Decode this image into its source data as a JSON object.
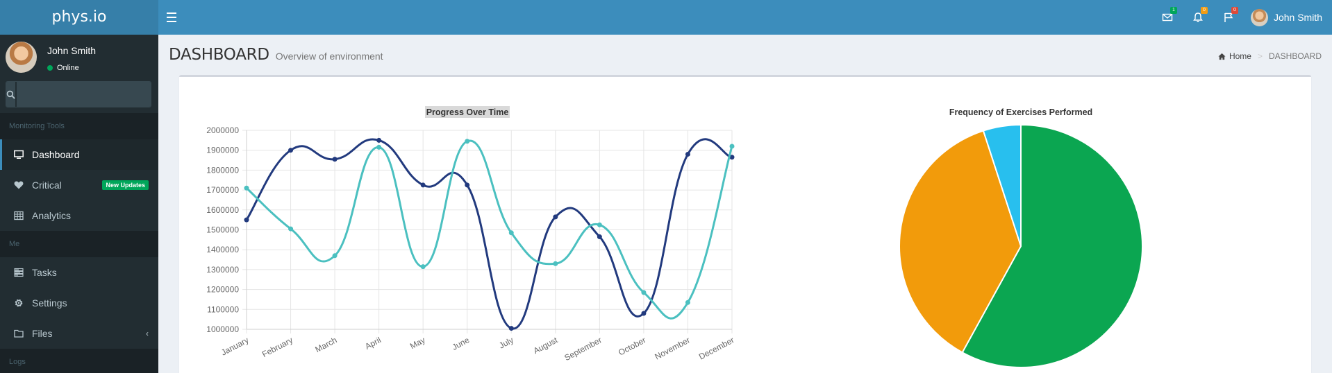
{
  "app": {
    "logo": "phys.io"
  },
  "header": {
    "notifications": [
      {
        "icon": "envelope-icon",
        "count": "1",
        "color": "#00a65a"
      },
      {
        "icon": "bell-icon",
        "count": "0",
        "color": "#f39c12"
      },
      {
        "icon": "flag-icon",
        "count": "0",
        "color": "#dd4b39"
      }
    ],
    "user_name": "John Smith"
  },
  "sidebar": {
    "user": {
      "name": "John Smith",
      "status": "Online"
    },
    "search": {
      "value": "",
      "placeholder": ""
    },
    "sections": [
      {
        "header": "Monitoring Tools",
        "items": [
          {
            "label": "Dashboard",
            "icon": "desktop-icon",
            "active": true
          },
          {
            "label": "Critical",
            "icon": "heart-icon",
            "badge": "New Updates"
          },
          {
            "label": "Analytics",
            "icon": "table-icon"
          }
        ]
      },
      {
        "header": "Me",
        "items": [
          {
            "label": "Tasks",
            "icon": "tasks-icon"
          },
          {
            "label": "Settings",
            "icon": "gear-icon"
          },
          {
            "label": "Files",
            "icon": "folder-icon"
          }
        ]
      },
      {
        "header": "Logs"
      }
    ]
  },
  "content": {
    "title": "DASHBOARD",
    "subtitle": "Overview of environment",
    "breadcrumb": {
      "home": "Home",
      "current": "DASHBOARD"
    }
  },
  "chart_data": [
    {
      "type": "line",
      "title": "Progress Over Time",
      "categories": [
        "January",
        "February",
        "March",
        "April",
        "May",
        "June",
        "July",
        "August",
        "September",
        "October",
        "November",
        "December"
      ],
      "series": [
        {
          "color": "#223a7e",
          "values": [
            1550000,
            1900000,
            1855000,
            1950000,
            1725000,
            1725000,
            1005000,
            1565000,
            1465000,
            1080000,
            1880000,
            1865000
          ]
        },
        {
          "color": "#4bc0c0",
          "values": [
            1710000,
            1505000,
            1370000,
            1915000,
            1315000,
            1945000,
            1485000,
            1330000,
            1525000,
            1185000,
            1135000,
            1920000
          ]
        }
      ],
      "ylim": [
        1000000,
        2000000
      ],
      "yticks": [
        2000000,
        1900000,
        1800000,
        1700000,
        1600000,
        1500000,
        1400000,
        1300000,
        1200000,
        1100000,
        1000000
      ],
      "grid": true
    },
    {
      "type": "pie",
      "title": "Frequency of Exercises Performed",
      "slices": [
        {
          "value": 58,
          "color": "#0ba651"
        },
        {
          "value": 37,
          "color": "#f29b0b"
        },
        {
          "value": 5,
          "color": "#28bfee"
        }
      ]
    }
  ]
}
